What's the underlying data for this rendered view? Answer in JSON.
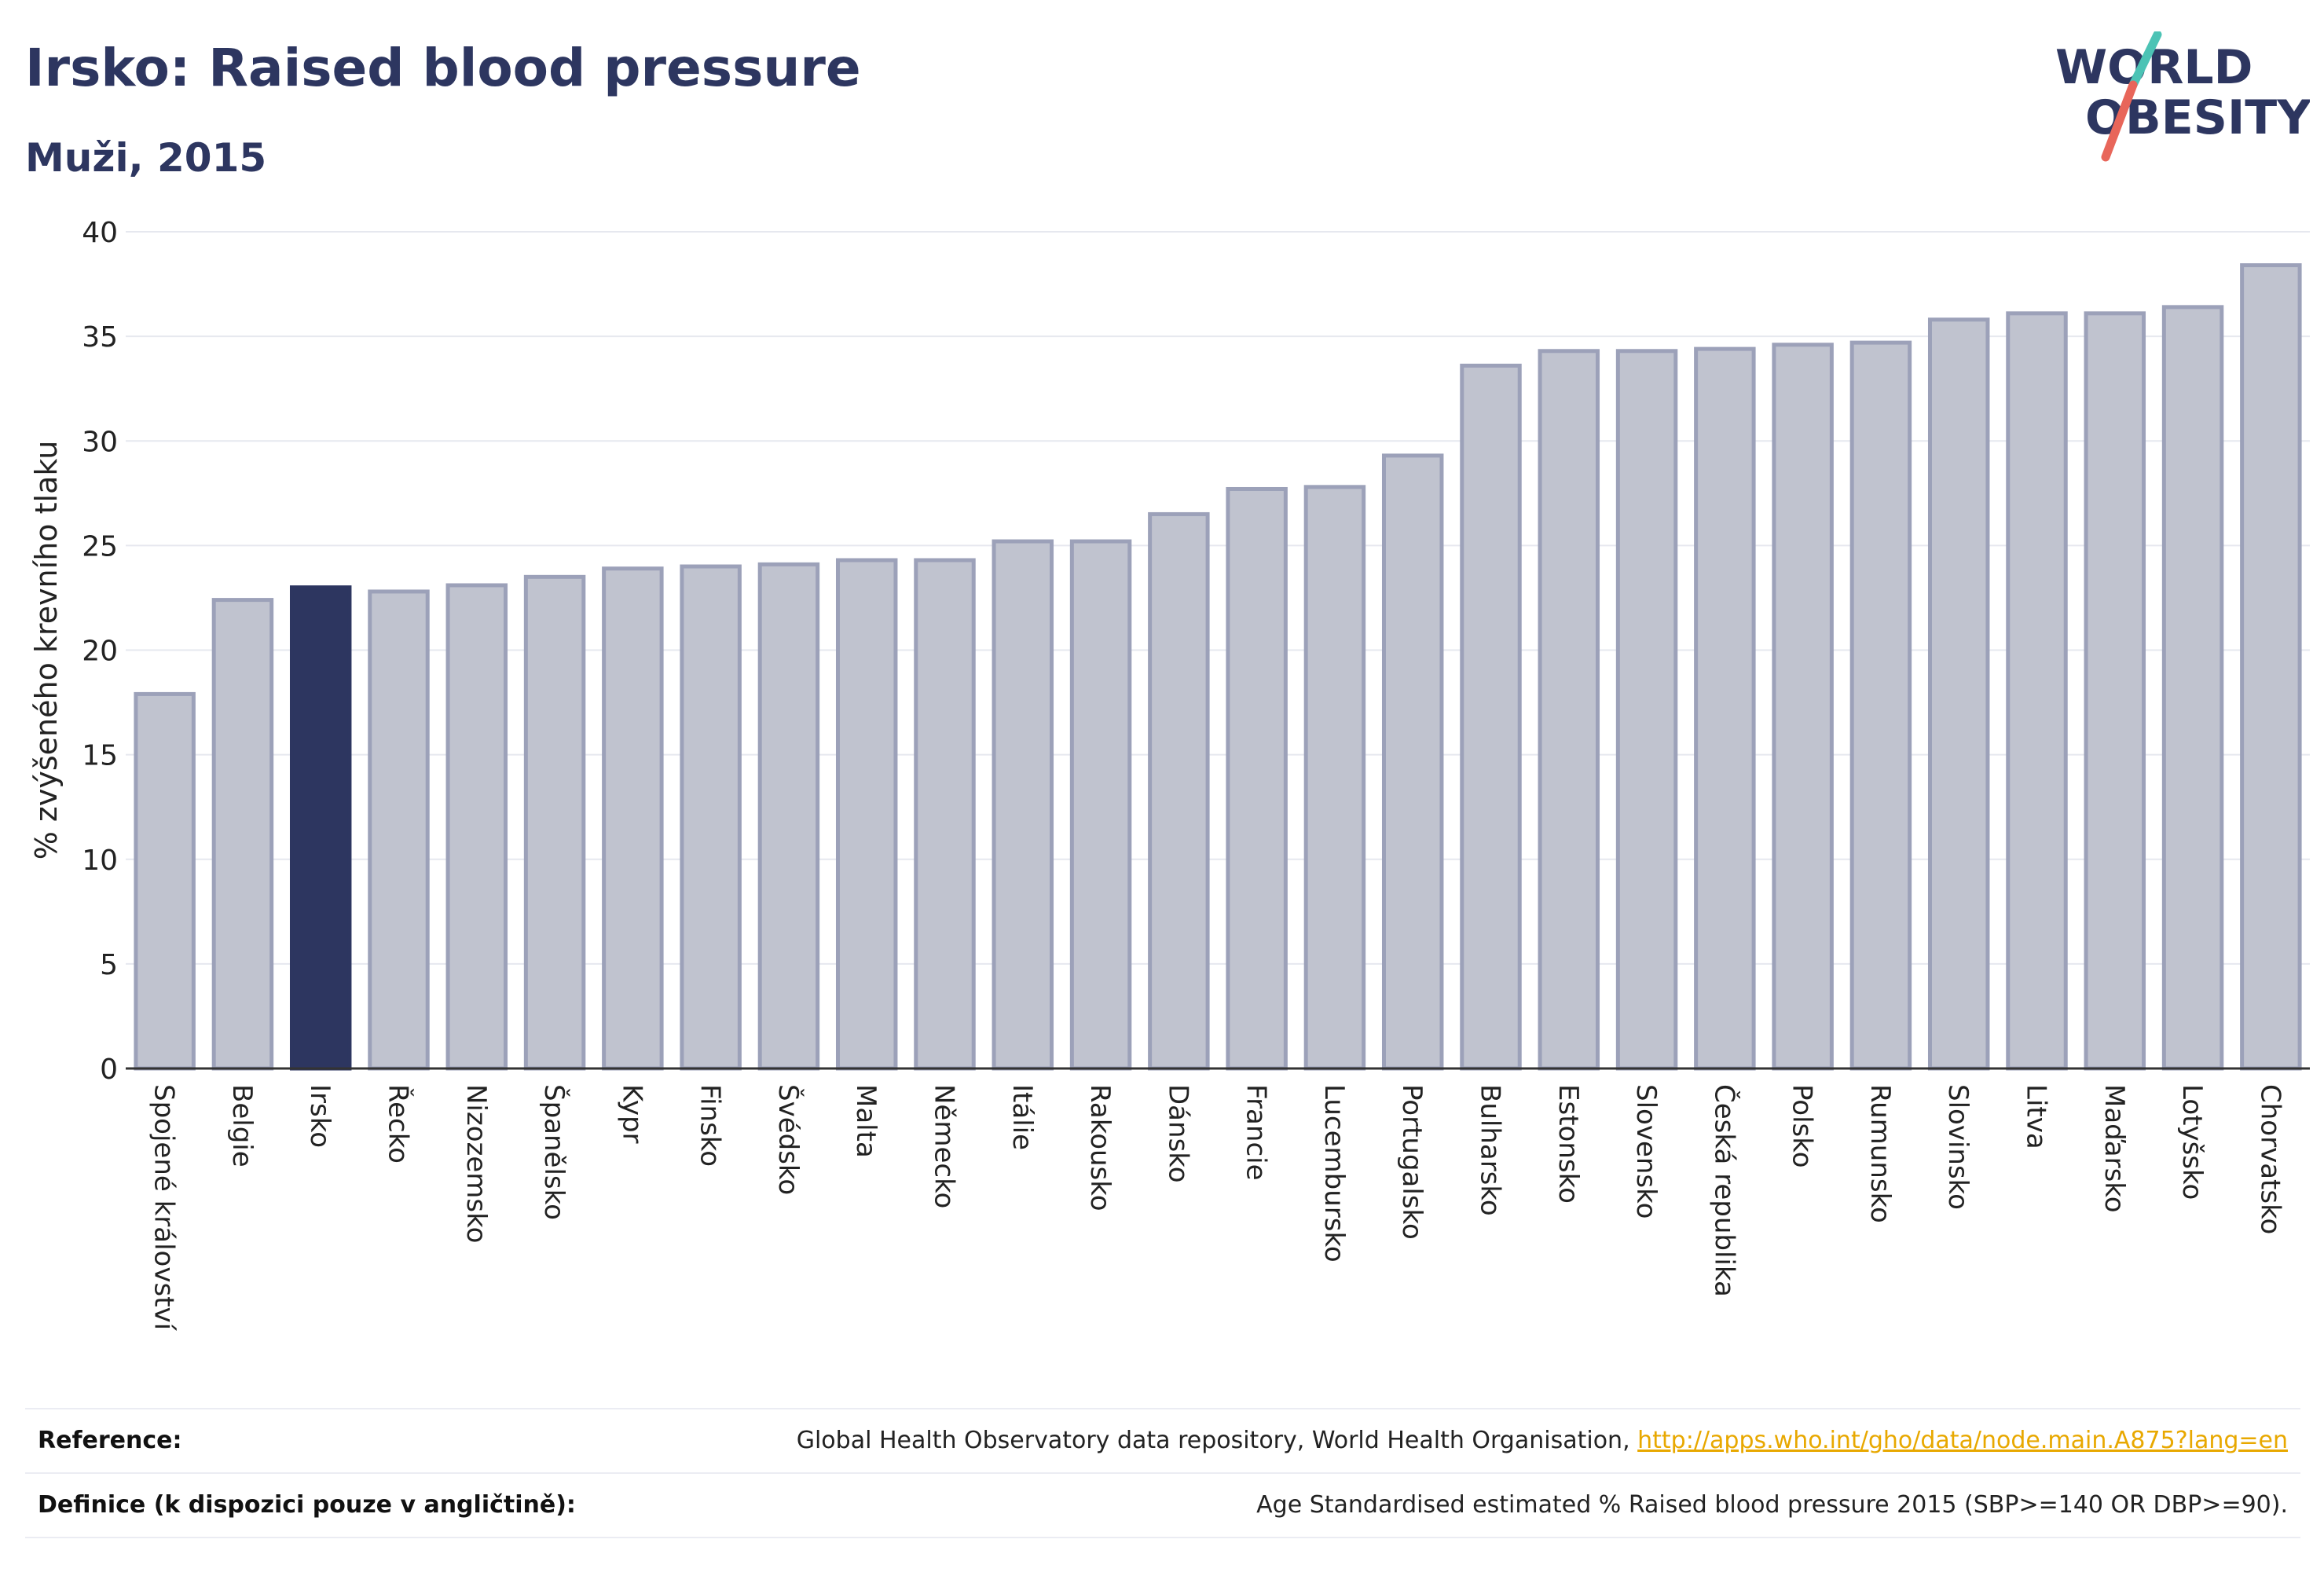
{
  "header": {
    "title": "Irsko: Raised blood pressure",
    "subtitle": "Muži, 2015"
  },
  "logo": {
    "line1": "WORLD",
    "line2": "OBESITY",
    "colors": {
      "text": "#2d3660",
      "slash_top": "#4cc3b5",
      "slash_bottom": "#e8665a"
    }
  },
  "chart_data": {
    "type": "bar",
    "ylabel": "% zvýšeného krevního tlaku",
    "xlabel": "",
    "ylim": [
      0,
      40
    ],
    "yticks": [
      0,
      5,
      10,
      15,
      20,
      25,
      30,
      35,
      40
    ],
    "grid": true,
    "highlight": "Irsko",
    "colors": {
      "bar": "#c0c3cf",
      "bar_border": "#9ca1b9",
      "highlight": "#2d3660"
    },
    "categories": [
      "Spojené království",
      "Belgie",
      "Irsko",
      "Řecko",
      "Nizozemsko",
      "Španělsko",
      "Kypr",
      "Finsko",
      "Švédsko",
      "Malta",
      "Německo",
      "Itálie",
      "Rakousko",
      "Dánsko",
      "Francie",
      "Lucembursko",
      "Portugalsko",
      "Bulharsko",
      "Estonsko",
      "Slovensko",
      "Česká republika",
      "Polsko",
      "Rumunsko",
      "Slovinsko",
      "Litva",
      "Maďarsko",
      "Lotyšsko",
      "Chorvatsko"
    ],
    "values": [
      17.9,
      22.4,
      23.0,
      22.8,
      23.1,
      23.5,
      23.9,
      24.0,
      24.1,
      24.3,
      24.3,
      25.2,
      25.2,
      26.5,
      27.7,
      27.8,
      29.3,
      33.6,
      34.3,
      34.3,
      34.4,
      34.6,
      34.7,
      35.8,
      36.1,
      36.1,
      36.4,
      38.4
    ]
  },
  "footer": {
    "reference_label": "Reference:",
    "reference_text": "Global Health Observatory data repository, World Health Organisation, ",
    "reference_link": "http://apps.who.int/gho/data/node.main.A875?lang=en",
    "definition_label": "Definice (k dispozici pouze v angličtině):",
    "definition_text": "Age Standardised estimated % Raised blood pressure 2015 (SBP>=140 OR DBP>=90)."
  }
}
